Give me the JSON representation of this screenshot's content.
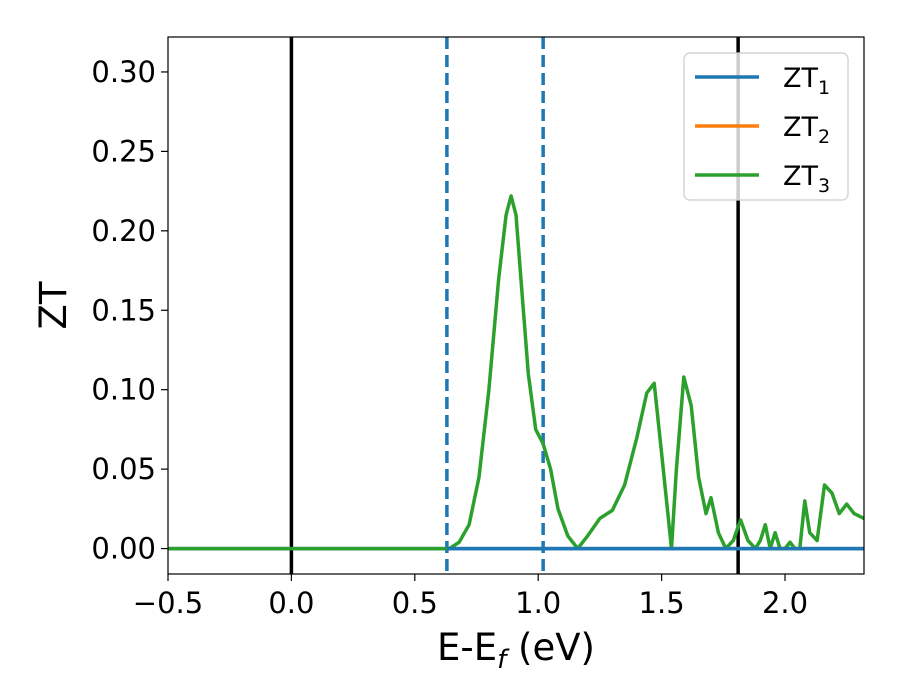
{
  "chart_data": {
    "type": "line",
    "title": "",
    "xlabel": {
      "main": "E-E",
      "sub": "f",
      "unit": " (eV)"
    },
    "ylabel": "ZT",
    "xlim": [
      -0.5,
      2.32
    ],
    "ylim": [
      -0.016,
      0.322
    ],
    "xticks": [
      -0.5,
      0.0,
      0.5,
      1.0,
      1.5,
      2.0
    ],
    "xtick_labels": [
      "−0.5",
      "0.0",
      "0.5",
      "1.0",
      "1.5",
      "2.0"
    ],
    "yticks": [
      0.0,
      0.05,
      0.1,
      0.15,
      0.2,
      0.25,
      0.3
    ],
    "ytick_labels": [
      "0.00",
      "0.05",
      "0.10",
      "0.15",
      "0.20",
      "0.25",
      "0.30"
    ],
    "grid": false,
    "legend_position": "top-right",
    "vertical_lines": [
      {
        "x": 0.0,
        "style": "solid",
        "color": "#000000"
      },
      {
        "x": 1.81,
        "style": "solid",
        "color": "#000000"
      },
      {
        "x": 0.63,
        "style": "dashed",
        "color": "#1f77b4"
      },
      {
        "x": 1.02,
        "style": "dashed",
        "color": "#1f77b4"
      }
    ],
    "series": [
      {
        "name": "ZT",
        "sub": "1",
        "color": "#1f77b4",
        "x": [
          -0.5,
          2.32
        ],
        "y": [
          0.0,
          0.0
        ]
      },
      {
        "name": "ZT",
        "sub": "2",
        "color": "#ff7f0e",
        "x": [],
        "y": []
      },
      {
        "name": "ZT",
        "sub": "3",
        "color": "#2ca02c",
        "x": [
          -0.5,
          0.6,
          0.64,
          0.68,
          0.72,
          0.76,
          0.8,
          0.84,
          0.87,
          0.89,
          0.91,
          0.93,
          0.96,
          0.99,
          1.02,
          1.05,
          1.08,
          1.12,
          1.16,
          1.2,
          1.25,
          1.3,
          1.35,
          1.4,
          1.44,
          1.47,
          1.5,
          1.54,
          1.56,
          1.59,
          1.62,
          1.65,
          1.68,
          1.7,
          1.73,
          1.76,
          1.79,
          1.82,
          1.85,
          1.88,
          1.9,
          1.92,
          1.94,
          1.96,
          1.98,
          2.0,
          2.02,
          2.04,
          2.06,
          2.08,
          2.1,
          2.13,
          2.16,
          2.19,
          2.22,
          2.25,
          2.28,
          2.32
        ],
        "y": [
          0.0,
          0.0,
          0.0,
          0.004,
          0.015,
          0.045,
          0.1,
          0.17,
          0.21,
          0.222,
          0.21,
          0.17,
          0.11,
          0.075,
          0.066,
          0.05,
          0.025,
          0.008,
          0.0,
          0.008,
          0.019,
          0.024,
          0.04,
          0.07,
          0.098,
          0.104,
          0.06,
          0.0,
          0.05,
          0.108,
          0.09,
          0.045,
          0.022,
          0.032,
          0.01,
          0.0,
          0.005,
          0.018,
          0.005,
          0.0,
          0.005,
          0.015,
          0.0,
          0.01,
          0.0,
          0.0,
          0.004,
          0.0,
          0.0,
          0.03,
          0.01,
          0.005,
          0.04,
          0.035,
          0.022,
          0.028,
          0.022,
          0.019
        ]
      }
    ]
  }
}
